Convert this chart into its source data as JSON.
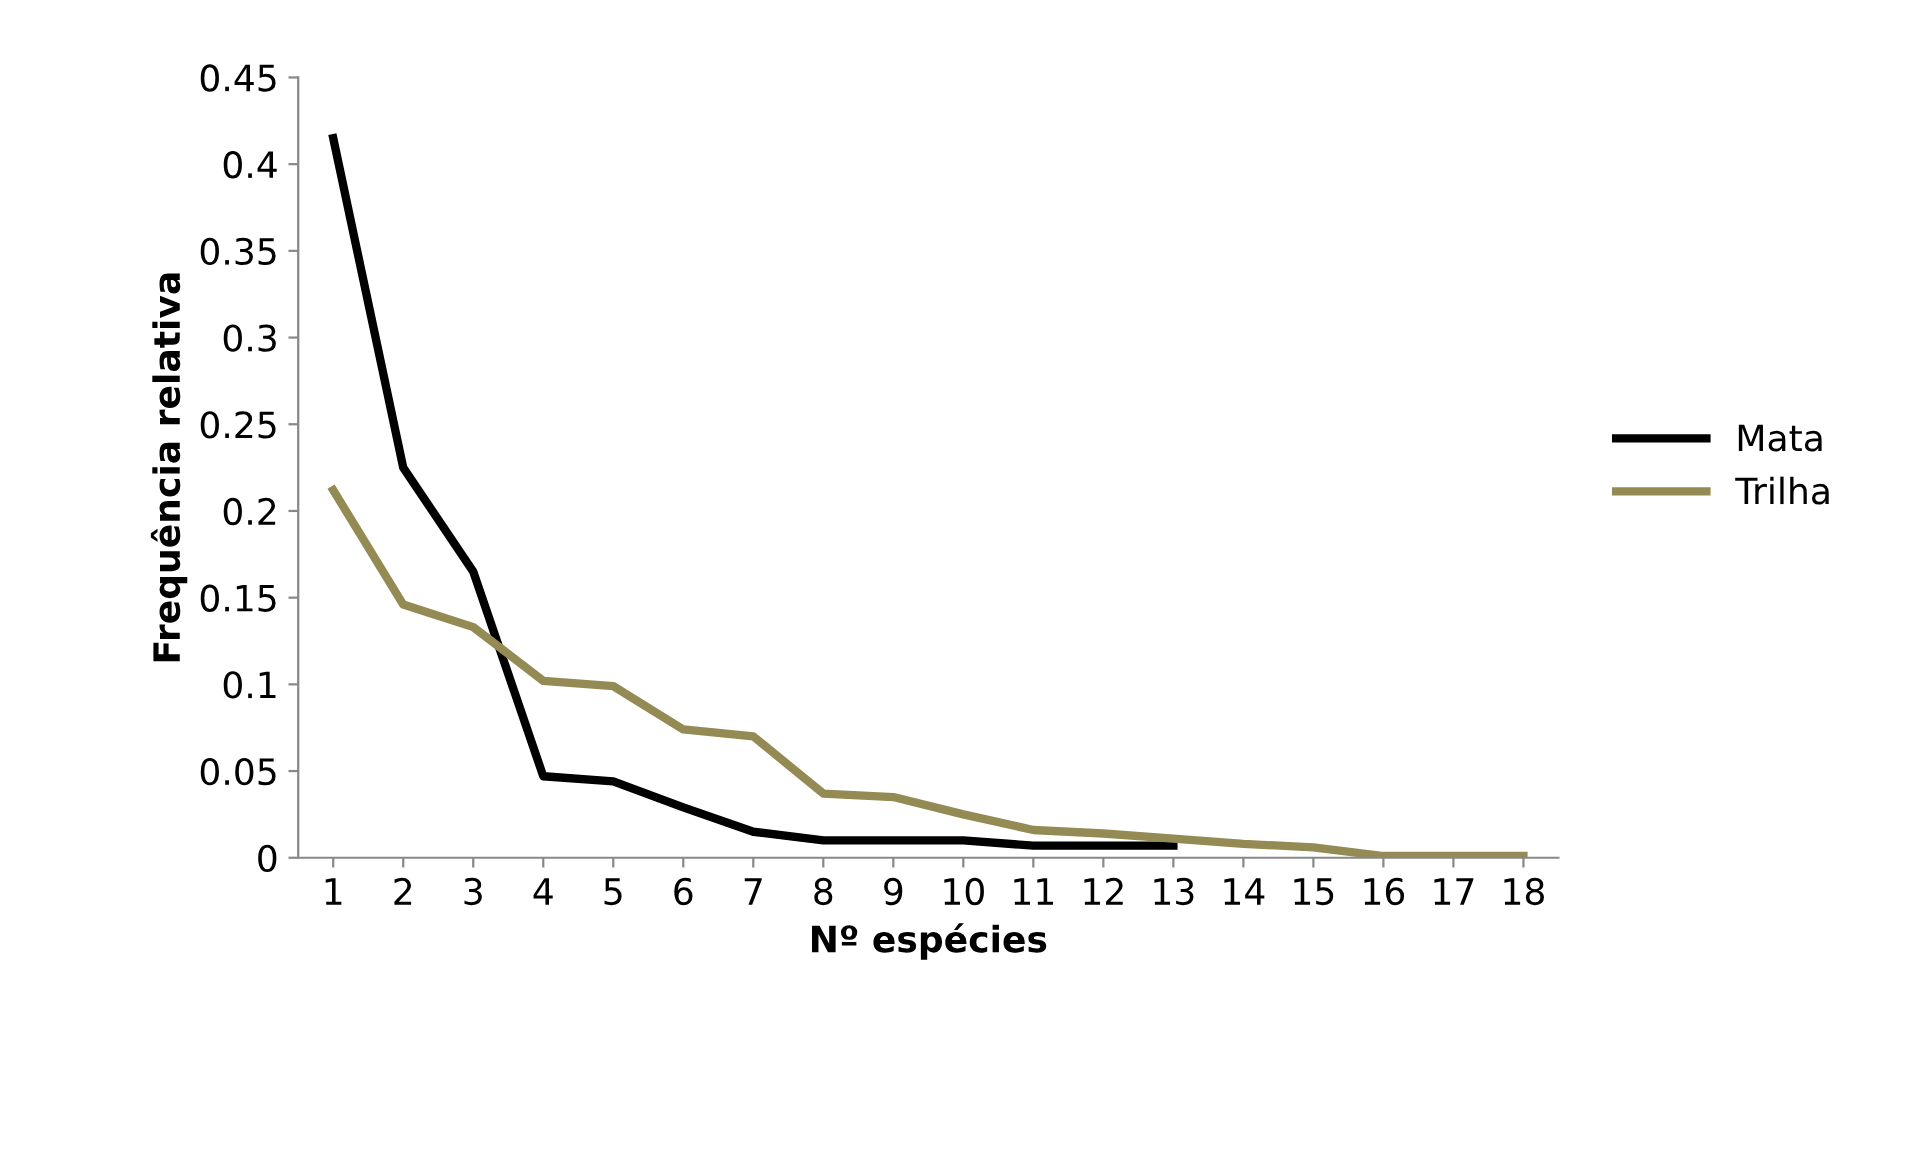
{
  "chart_data": {
    "type": "line",
    "xlabel": "Nº espécies",
    "ylabel": "Frequência relativa",
    "categories": [
      "1",
      "2",
      "3",
      "4",
      "5",
      "6",
      "7",
      "8",
      "9",
      "10",
      "11",
      "12",
      "13",
      "14",
      "15",
      "16",
      "17",
      "18"
    ],
    "series": [
      {
        "name": "Mata",
        "color": "#000000",
        "values": [
          0.415,
          0.225,
          0.165,
          0.047,
          0.044,
          0.029,
          0.015,
          0.01,
          0.01,
          0.01,
          0.007,
          0.007,
          0.007,
          null,
          null,
          null,
          null,
          null
        ]
      },
      {
        "name": "Trilha",
        "color": "#948a54",
        "values": [
          0.212,
          0.146,
          0.133,
          0.102,
          0.099,
          0.074,
          0.07,
          0.037,
          0.035,
          0.025,
          0.016,
          0.014,
          0.011,
          0.008,
          0.006,
          0.001,
          0.001,
          0.001
        ]
      }
    ],
    "ylim": [
      0,
      0.45
    ],
    "yticks": [
      {
        "value": 0,
        "label": "0"
      },
      0.05,
      0.1,
      0.15,
      0.2,
      0.25,
      0.3,
      0.35,
      0.4,
      0.45
    ],
    "grid": false,
    "legend": "right",
    "marker": "none",
    "line_style": "solid"
  }
}
